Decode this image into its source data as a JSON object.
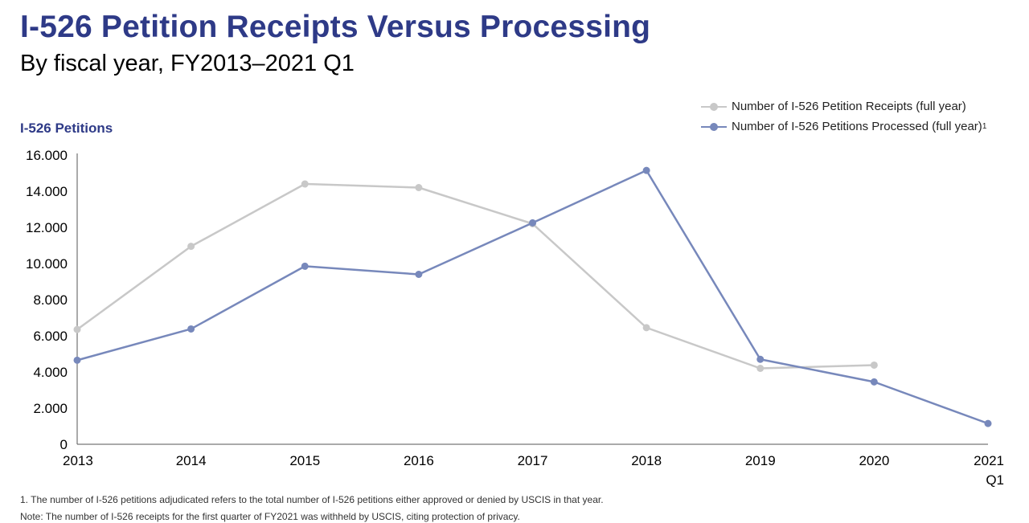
{
  "title": "I-526 Petition Receipts Versus Processing",
  "subtitle": "By fiscal year, FY2013–2021 Q1",
  "footnotes": [
    "1. The number of I-526 petitions adjudicated refers to the total number of I-526 petitions either approved or denied by USCIS in that year.",
    "Note: The number of I-526 receipts for the first quarter of FY2021 was withheld by USCIS, citing protection of privacy."
  ],
  "chart_data": {
    "type": "line",
    "title": "I-526 Petition Receipts Versus Processing",
    "ylabel": "I-526 Petitions",
    "xlabel": "",
    "ylim": [
      0,
      16000
    ],
    "y_ticks": [
      0,
      2000,
      4000,
      6000,
      8000,
      10000,
      12000,
      14000,
      16000
    ],
    "y_tick_labels": [
      "0",
      "2.000",
      "4.000",
      "6.000",
      "8.000",
      "10.000",
      "12.000",
      "14.000",
      "16.000"
    ],
    "categories": [
      "2013",
      "2014",
      "2015",
      "2016",
      "2017",
      "2018",
      "2019",
      "2020",
      "2021"
    ],
    "category_sublabels": [
      "",
      "",
      "",
      "",
      "",
      "",
      "",
      "",
      "Q1"
    ],
    "grid": false,
    "legend_position": "top-right",
    "series": [
      {
        "name": "Number of I-526 Petition Receipts (full year)",
        "superscript": "",
        "color": "#c8c8c8",
        "values": [
          6350,
          10950,
          14400,
          14200,
          12200,
          6450,
          4200,
          4380,
          null
        ]
      },
      {
        "name": "Number of I-526 Petitions Processed (full year)",
        "superscript": "1",
        "color": "#7788bb",
        "values": [
          4650,
          6380,
          9850,
          9400,
          12250,
          15150,
          4700,
          3450,
          1150
        ]
      }
    ]
  }
}
